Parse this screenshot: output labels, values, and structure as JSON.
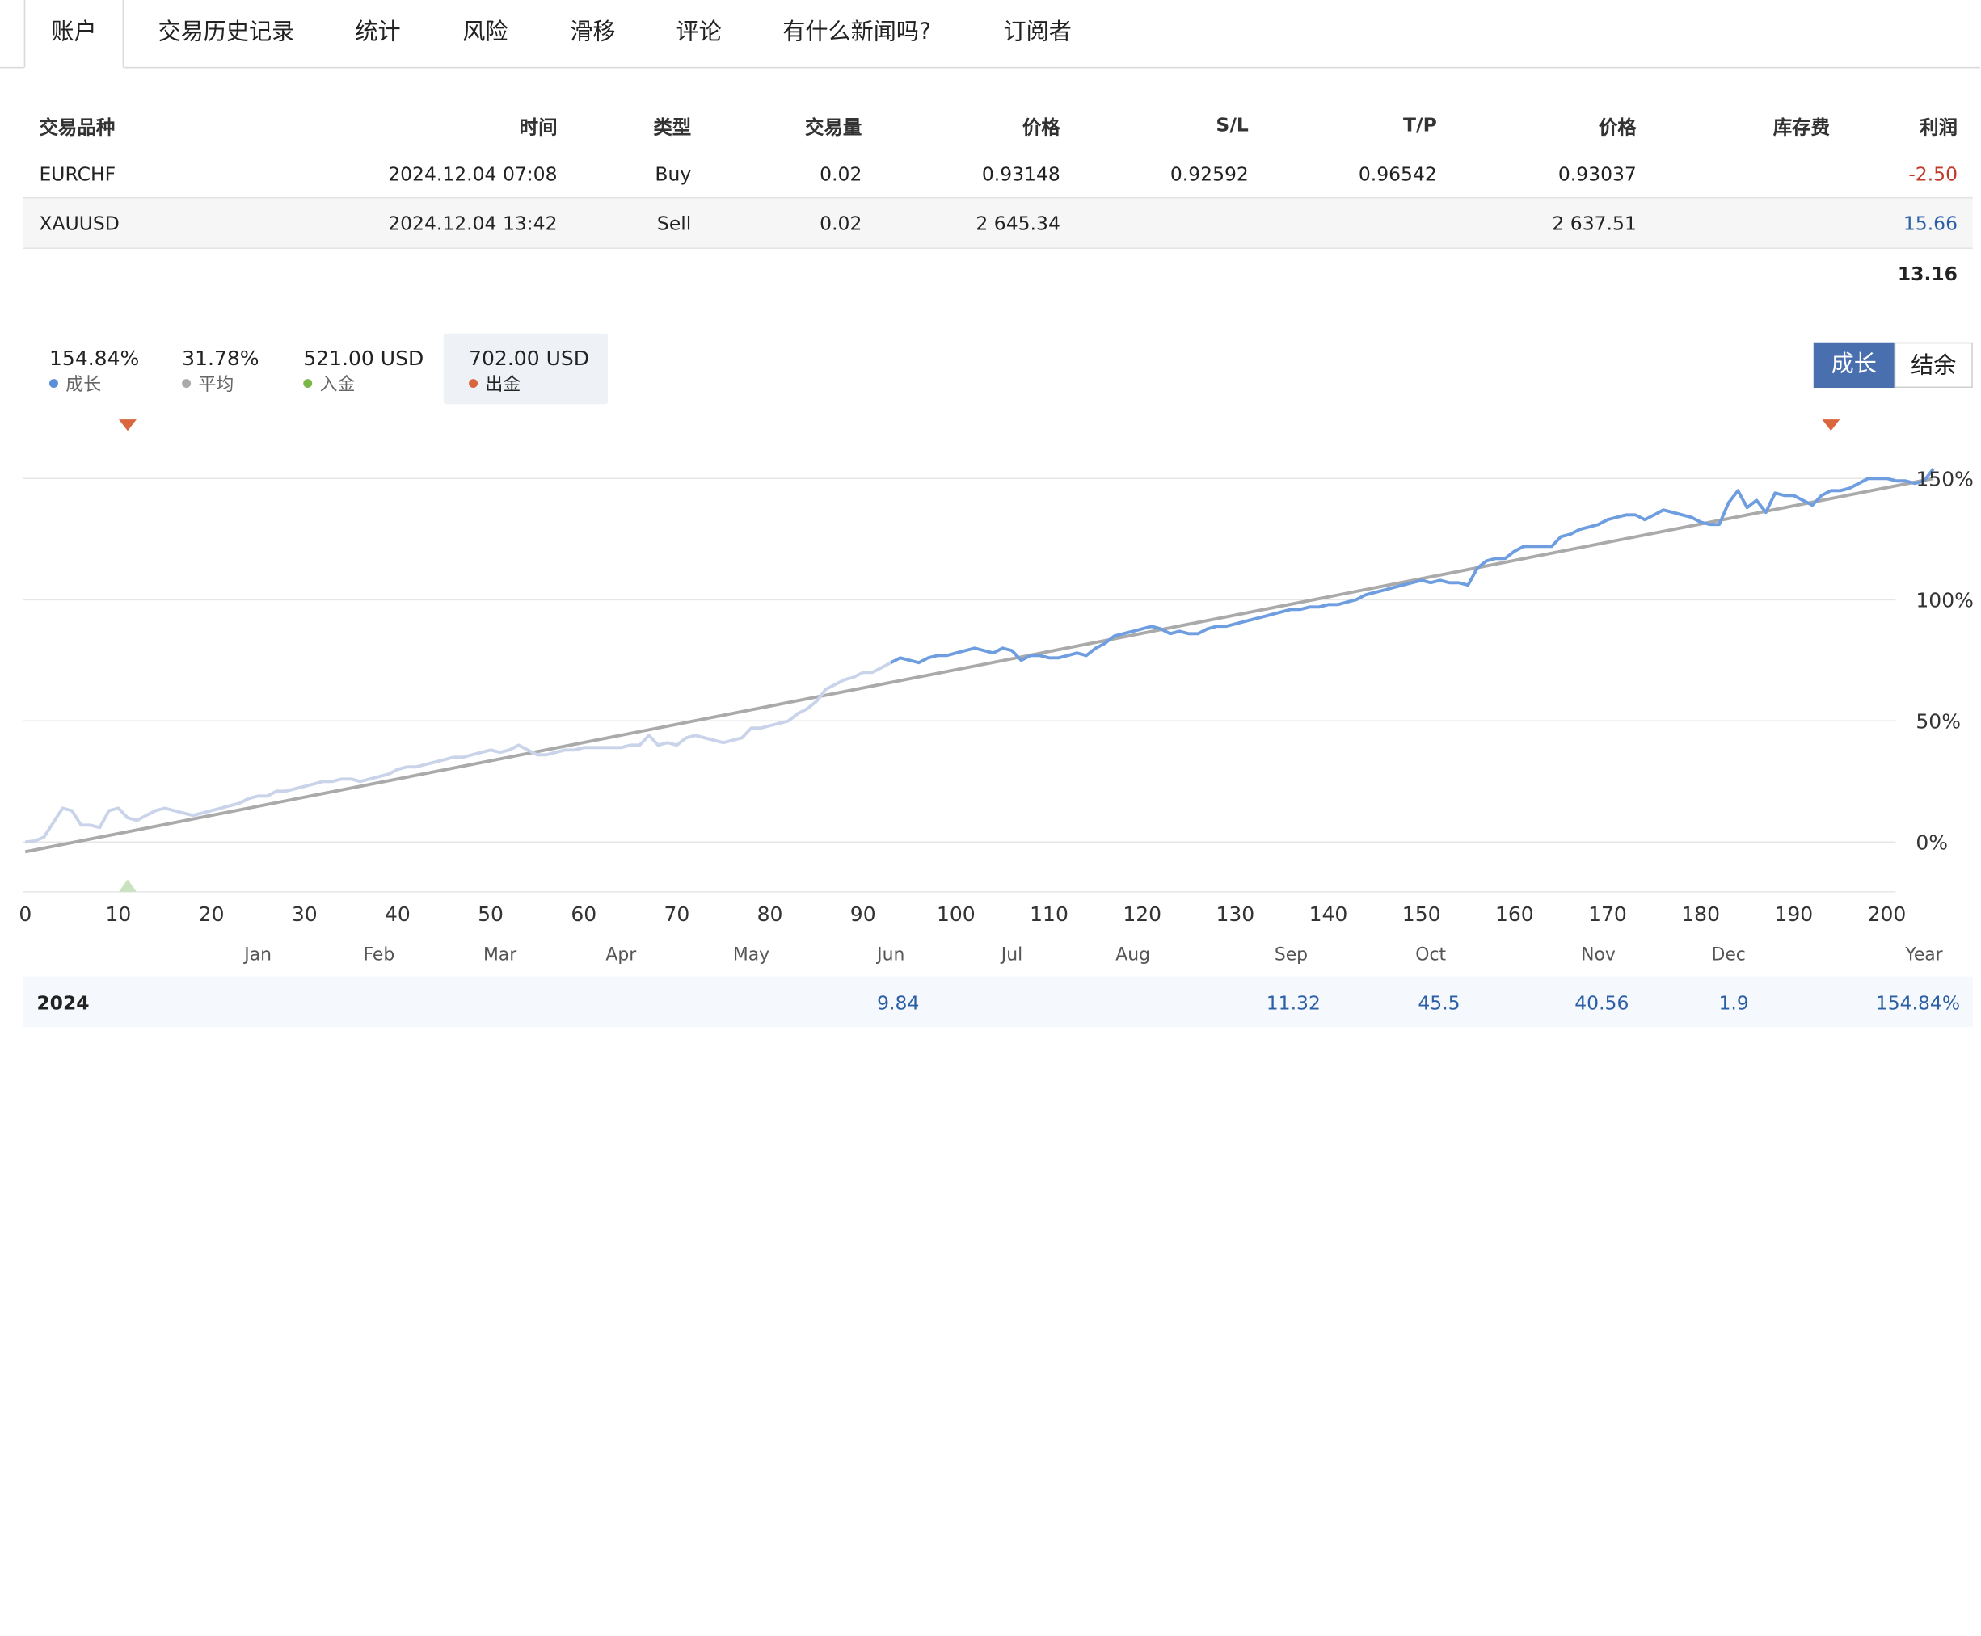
{
  "tabs": [
    "账户",
    "交易历史记录",
    "统计",
    "风险",
    "滑移",
    "评论",
    "有什么新闻吗?",
    "订阅者"
  ],
  "trades": {
    "headers": [
      "交易品种",
      "时间",
      "类型",
      "交易量",
      "价格",
      "S/L",
      "T/P",
      "价格",
      "库存费",
      "利润"
    ],
    "rows": [
      {
        "symbol": "EURCHF",
        "time": "2024.12.04 07:08",
        "type": "Buy",
        "volume": "0.02",
        "price_open": "0.93148",
        "sl": "0.92592",
        "tp": "0.96542",
        "price_current": "0.93037",
        "swap": "",
        "profit": "-2.50"
      },
      {
        "symbol": "XAUUSD",
        "time": "2024.12.04 13:42",
        "type": "Sell",
        "volume": "0.02",
        "price_open": "2 645.34",
        "sl": "",
        "tp": "",
        "price_current": "2 637.51",
        "swap": "",
        "profit": "15.66"
      }
    ],
    "total": "13.16"
  },
  "legend": [
    {
      "value": "154.84%",
      "label": "成长",
      "color": "#5b8fd8"
    },
    {
      "value": "31.78%",
      "label": "平均",
      "color": "#aaaaaa"
    },
    {
      "value": "521.00 USD",
      "label": "入金",
      "color": "#7ab648"
    },
    {
      "value": "702.00 USD",
      "label": "出金",
      "color": "#d9663c"
    }
  ],
  "toggle": {
    "growth": "成长",
    "balance": "结余"
  },
  "chart_data": {
    "type": "line",
    "x_ticks": [
      0,
      10,
      20,
      30,
      40,
      50,
      60,
      70,
      80,
      90,
      100,
      110,
      120,
      130,
      140,
      150,
      160,
      170,
      180,
      190,
      200
    ],
    "y_ticks": [
      "0%",
      "50%",
      "100%",
      "150%"
    ],
    "y_tick_values": [
      0,
      50,
      100,
      150
    ],
    "xlim": [
      0,
      200
    ],
    "ylim": [
      -20,
      165
    ],
    "months": [
      {
        "name": "Jan",
        "x": 25
      },
      {
        "name": "Feb",
        "x": 38
      },
      {
        "name": "Mar",
        "x": 51
      },
      {
        "name": "Apr",
        "x": 64
      },
      {
        "name": "May",
        "x": 78
      },
      {
        "name": "Jun",
        "x": 93
      },
      {
        "name": "Jul",
        "x": 106
      },
      {
        "name": "Aug",
        "x": 119
      },
      {
        "name": "Sep",
        "x": 136
      },
      {
        "name": "Oct",
        "x": 151
      },
      {
        "name": "Nov",
        "x": 169
      },
      {
        "name": "Dec",
        "x": 183
      },
      {
        "name": "Year",
        "x": 204
      }
    ],
    "series": [
      {
        "role": "growth",
        "color_early": "#c9d4ea",
        "color": "#6f9ee0",
        "highlight_from_x": 93,
        "points": [
          [
            0,
            0
          ],
          [
            1,
            0.5
          ],
          [
            2,
            2
          ],
          [
            3,
            8
          ],
          [
            4,
            14
          ],
          [
            5,
            13
          ],
          [
            6,
            7
          ],
          [
            7,
            7
          ],
          [
            8,
            6
          ],
          [
            9,
            13
          ],
          [
            10,
            14
          ],
          [
            11,
            10
          ],
          [
            12,
            9
          ],
          [
            13,
            11
          ],
          [
            14,
            13
          ],
          [
            15,
            14
          ],
          [
            16,
            13
          ],
          [
            17,
            12
          ],
          [
            18,
            11
          ],
          [
            19,
            12
          ],
          [
            20,
            13
          ],
          [
            21,
            14
          ],
          [
            22,
            15
          ],
          [
            23,
            16
          ],
          [
            24,
            18
          ],
          [
            25,
            19
          ],
          [
            26,
            19
          ],
          [
            27,
            21
          ],
          [
            28,
            21
          ],
          [
            29,
            22
          ],
          [
            30,
            23
          ],
          [
            31,
            24
          ],
          [
            32,
            25
          ],
          [
            33,
            25
          ],
          [
            34,
            26
          ],
          [
            35,
            26
          ],
          [
            36,
            25
          ],
          [
            37,
            26
          ],
          [
            38,
            27
          ],
          [
            39,
            28
          ],
          [
            40,
            30
          ],
          [
            41,
            31
          ],
          [
            42,
            31
          ],
          [
            43,
            32
          ],
          [
            44,
            33
          ],
          [
            45,
            34
          ],
          [
            46,
            35
          ],
          [
            47,
            35
          ],
          [
            48,
            36
          ],
          [
            49,
            37
          ],
          [
            50,
            38
          ],
          [
            51,
            37
          ],
          [
            52,
            38
          ],
          [
            53,
            40
          ],
          [
            54,
            38
          ],
          [
            55,
            36
          ],
          [
            56,
            36
          ],
          [
            57,
            37
          ],
          [
            58,
            38
          ],
          [
            59,
            38
          ],
          [
            60,
            39
          ],
          [
            61,
            39
          ],
          [
            62,
            39
          ],
          [
            63,
            39
          ],
          [
            64,
            39
          ],
          [
            65,
            40
          ],
          [
            66,
            40
          ],
          [
            67,
            44
          ],
          [
            68,
            40
          ],
          [
            69,
            41
          ],
          [
            70,
            40
          ],
          [
            71,
            43
          ],
          [
            72,
            44
          ],
          [
            73,
            43
          ],
          [
            74,
            42
          ],
          [
            75,
            41
          ],
          [
            76,
            42
          ],
          [
            77,
            43
          ],
          [
            78,
            47
          ],
          [
            79,
            47
          ],
          [
            80,
            48
          ],
          [
            81,
            49
          ],
          [
            82,
            50
          ],
          [
            83,
            53
          ],
          [
            84,
            55
          ],
          [
            85,
            58
          ],
          [
            86,
            63
          ],
          [
            87,
            65
          ],
          [
            88,
            67
          ],
          [
            89,
            68
          ],
          [
            90,
            70
          ],
          [
            91,
            70
          ],
          [
            92,
            72
          ],
          [
            93,
            74
          ],
          [
            94,
            76
          ],
          [
            95,
            75
          ],
          [
            96,
            74
          ],
          [
            97,
            76
          ],
          [
            98,
            77
          ],
          [
            99,
            77
          ],
          [
            100,
            78
          ],
          [
            101,
            79
          ],
          [
            102,
            80
          ],
          [
            103,
            79
          ],
          [
            104,
            78
          ],
          [
            105,
            80
          ],
          [
            106,
            79
          ],
          [
            107,
            75
          ],
          [
            108,
            77
          ],
          [
            109,
            77
          ],
          [
            110,
            76
          ],
          [
            111,
            76
          ],
          [
            112,
            77
          ],
          [
            113,
            78
          ],
          [
            114,
            77
          ],
          [
            115,
            80
          ],
          [
            116,
            82
          ],
          [
            117,
            85
          ],
          [
            118,
            86
          ],
          [
            119,
            87
          ],
          [
            120,
            88
          ],
          [
            121,
            89
          ],
          [
            122,
            88
          ],
          [
            123,
            86
          ],
          [
            124,
            87
          ],
          [
            125,
            86
          ],
          [
            126,
            86
          ],
          [
            127,
            88
          ],
          [
            128,
            89
          ],
          [
            129,
            89
          ],
          [
            130,
            90
          ],
          [
            131,
            91
          ],
          [
            132,
            92
          ],
          [
            133,
            93
          ],
          [
            134,
            94
          ],
          [
            135,
            95
          ],
          [
            136,
            96
          ],
          [
            137,
            96
          ],
          [
            138,
            97
          ],
          [
            139,
            97
          ],
          [
            140,
            98
          ],
          [
            141,
            98
          ],
          [
            142,
            99
          ],
          [
            143,
            100
          ],
          [
            144,
            102
          ],
          [
            145,
            103
          ],
          [
            146,
            104
          ],
          [
            147,
            105
          ],
          [
            148,
            106
          ],
          [
            149,
            107
          ],
          [
            150,
            108
          ],
          [
            151,
            107
          ],
          [
            152,
            108
          ],
          [
            153,
            107
          ],
          [
            154,
            107
          ],
          [
            155,
            106
          ],
          [
            156,
            113
          ],
          [
            157,
            116
          ],
          [
            158,
            117
          ],
          [
            159,
            117
          ],
          [
            160,
            120
          ],
          [
            161,
            122
          ],
          [
            162,
            122
          ],
          [
            163,
            122
          ],
          [
            164,
            122
          ],
          [
            165,
            126
          ],
          [
            166,
            127
          ],
          [
            167,
            129
          ],
          [
            168,
            130
          ],
          [
            169,
            131
          ],
          [
            170,
            133
          ],
          [
            171,
            134
          ],
          [
            172,
            135
          ],
          [
            173,
            135
          ],
          [
            174,
            133
          ],
          [
            175,
            135
          ],
          [
            176,
            137
          ],
          [
            177,
            136
          ],
          [
            178,
            135
          ],
          [
            179,
            134
          ],
          [
            180,
            132
          ],
          [
            181,
            131
          ],
          [
            182,
            131
          ],
          [
            183,
            140
          ],
          [
            184,
            145
          ],
          [
            185,
            138
          ],
          [
            186,
            141
          ],
          [
            187,
            136
          ],
          [
            188,
            144
          ],
          [
            189,
            143
          ],
          [
            190,
            143
          ],
          [
            191,
            141
          ],
          [
            192,
            139
          ],
          [
            193,
            143
          ],
          [
            194,
            145
          ],
          [
            195,
            145
          ],
          [
            196,
            146
          ],
          [
            197,
            148
          ],
          [
            198,
            150
          ],
          [
            199,
            150
          ],
          [
            200,
            150
          ],
          [
            201,
            149
          ],
          [
            202,
            149
          ],
          [
            203,
            148
          ],
          [
            204,
            149
          ],
          [
            205,
            154
          ]
        ]
      },
      {
        "role": "average",
        "color": "#aaaaaa",
        "points": [
          [
            0,
            -4
          ],
          [
            205,
            150
          ]
        ]
      }
    ],
    "markers": [
      {
        "type": "withdrawal",
        "x": 11,
        "color": "#d9663c"
      },
      {
        "type": "withdrawal",
        "x": 194,
        "color": "#d9663c"
      },
      {
        "type": "deposit",
        "x": 11,
        "color": "#c9e3c0"
      }
    ]
  },
  "year_table": {
    "year": "2024",
    "cells": [
      {
        "month": "Jun",
        "value": "9.84"
      },
      {
        "month": "Sep",
        "value": "11.32"
      },
      {
        "month": "Oct",
        "value": "45.5"
      },
      {
        "month": "Nov",
        "value": "40.56"
      },
      {
        "month": "Dec",
        "value": "1.9"
      },
      {
        "month": "Year",
        "value": "154.84%"
      }
    ]
  }
}
